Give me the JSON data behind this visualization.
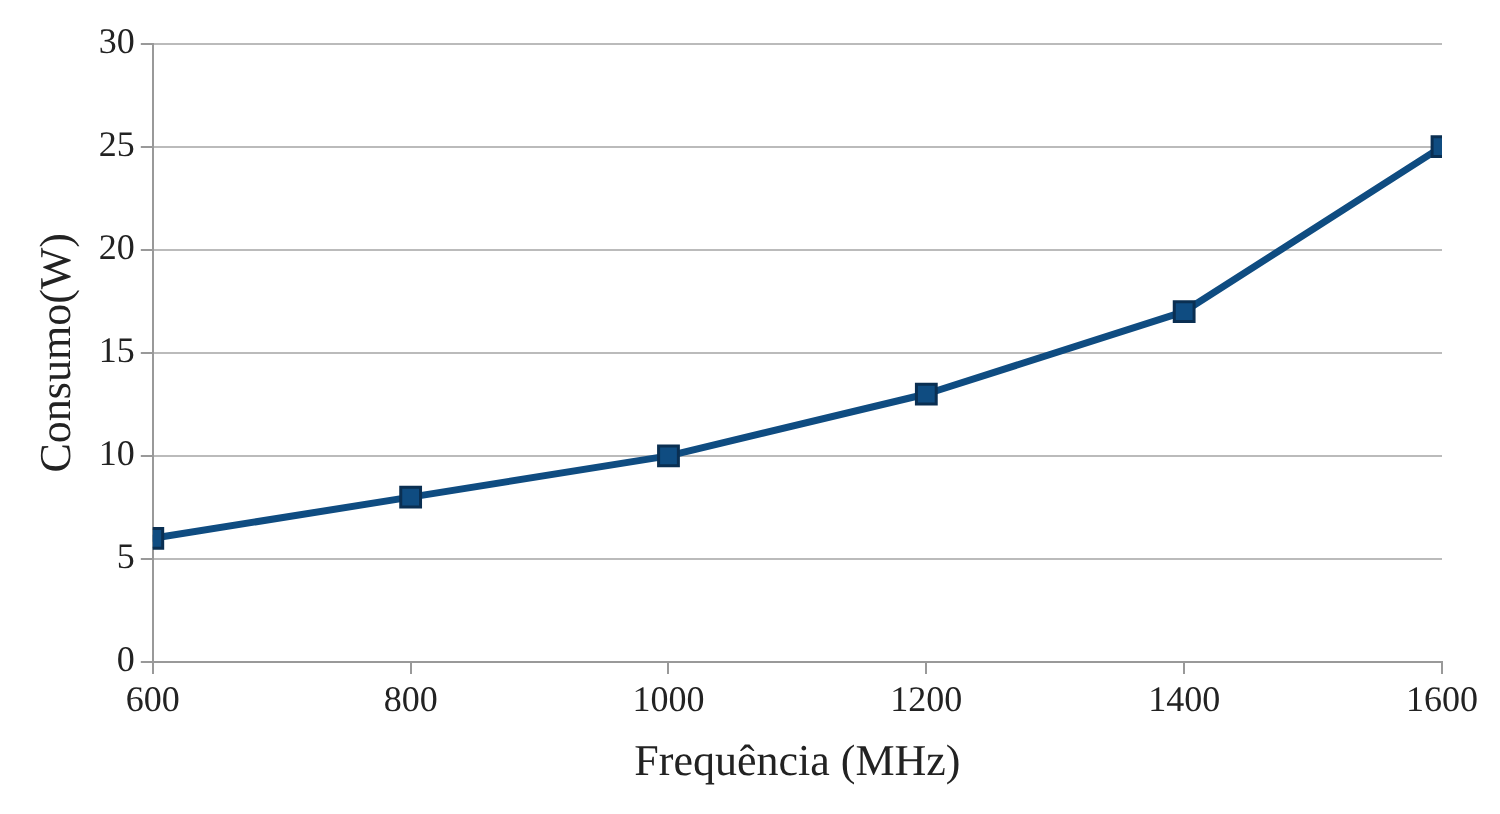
{
  "chart_data": {
    "type": "line",
    "xlabel": "Frequência (MHz)",
    "ylabel": "Consumo(W)",
    "x": [
      600,
      800,
      1000,
      1200,
      1400,
      1600
    ],
    "series": [
      {
        "color": "#0f4c81",
        "values": [
          6,
          8,
          10,
          13,
          17,
          25
        ]
      }
    ],
    "xlim": [
      600,
      1600
    ],
    "xticks": [
      600,
      800,
      1000,
      1200,
      1400,
      1600
    ],
    "ylim": [
      0,
      30
    ],
    "yticks": [
      0,
      5,
      10,
      15,
      20,
      25,
      30
    ],
    "grid": "y",
    "legend": false,
    "marker": "square",
    "line_style": "solid"
  }
}
